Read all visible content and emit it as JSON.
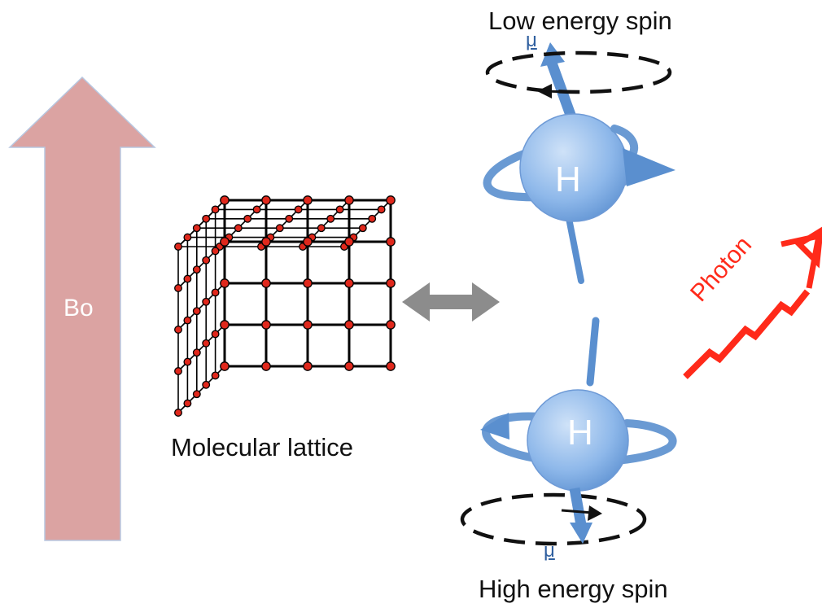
{
  "labels": {
    "field": "Bo",
    "lattice": "Molecular lattice",
    "low_spin": "Low energy spin",
    "high_spin": "High energy spin",
    "mu": "μ",
    "atom": "H",
    "photon": "Photon"
  },
  "colors": {
    "field_arrow": "#dba3a2",
    "field_arrow_border": "#b8c7e0",
    "spin_blue": "#5a8fcf",
    "atom_fill": "#8eb8ea",
    "lattice_node": "#e0281c",
    "lattice_line": "#000000",
    "exchange_arrow": "#8c8c8c",
    "photon": "#ff2a1a",
    "mu_text": "#2f5f9f"
  },
  "icons": {
    "field_arrow": "up-arrow-icon",
    "exchange_arrow": "double-headed-arrow-icon",
    "photon": "zigzag-arrow-icon"
  }
}
